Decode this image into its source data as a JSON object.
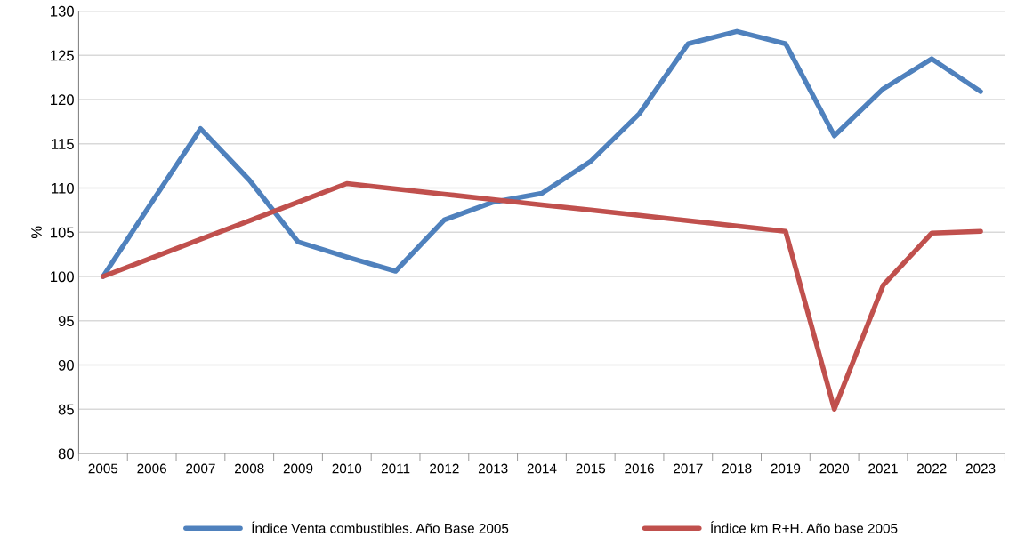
{
  "chart_data": {
    "type": "line",
    "ylabel": "%",
    "categories": [
      "2005",
      "2006",
      "2007",
      "2008",
      "2009",
      "2010",
      "2011",
      "2012",
      "2013",
      "2014",
      "2015",
      "2016",
      "2017",
      "2018",
      "2019",
      "2020",
      "2021",
      "2022",
      "2023"
    ],
    "series": [
      {
        "name": "Índice Venta combustibles. Año Base 2005",
        "color": "#4f81bd",
        "values": [
          100,
          108.4,
          116.7,
          110.9,
          103.9,
          102.2,
          100.6,
          106.4,
          108.4,
          109.4,
          113.0,
          118.4,
          126.3,
          127.7,
          126.3,
          115.9,
          121.2,
          124.6,
          120.9
        ]
      },
      {
        "name": "Índice km R+H. Año base 2005",
        "color": "#c0504d",
        "values": [
          100,
          102.1,
          104.2,
          106.3,
          108.4,
          110.5,
          109.9,
          109.3,
          108.7,
          108.1,
          107.5,
          106.9,
          106.3,
          105.7,
          105.1,
          85,
          99,
          104.9,
          105.1
        ]
      }
    ],
    "ylim": [
      80,
      130
    ],
    "yticks": [
      80,
      85,
      90,
      95,
      100,
      105,
      110,
      115,
      120,
      125,
      130
    ],
    "grid": "y",
    "legend": "bottom",
    "marker": "none",
    "line_style": "solid"
  }
}
